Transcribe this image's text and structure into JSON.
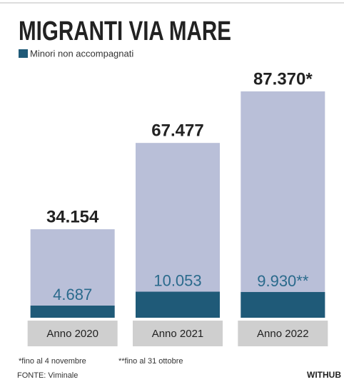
{
  "chart_data": {
    "type": "overlap-bar",
    "title": "MIGRANTI VIA MARE",
    "categories": [
      "Anno 2020",
      "Anno 2021",
      "Anno 2022"
    ],
    "series": [
      {
        "color": "#b9bfd8",
        "values": [
          34154,
          67477,
          87370
        ],
        "value_labels": [
          "34.154",
          "67.477",
          "87.370*"
        ]
      },
      {
        "name": "Minori non accompagnati",
        "color": "#1f5a78",
        "values": [
          4687,
          10053,
          9930
        ],
        "value_labels": [
          "4.687",
          "10.053",
          "9.930**"
        ]
      }
    ],
    "notes": [
      "*fino al 4 novembre",
      "**fino al 31 ottobre"
    ],
    "source": "FONTE: Viminale",
    "brand": "WITHUB"
  }
}
